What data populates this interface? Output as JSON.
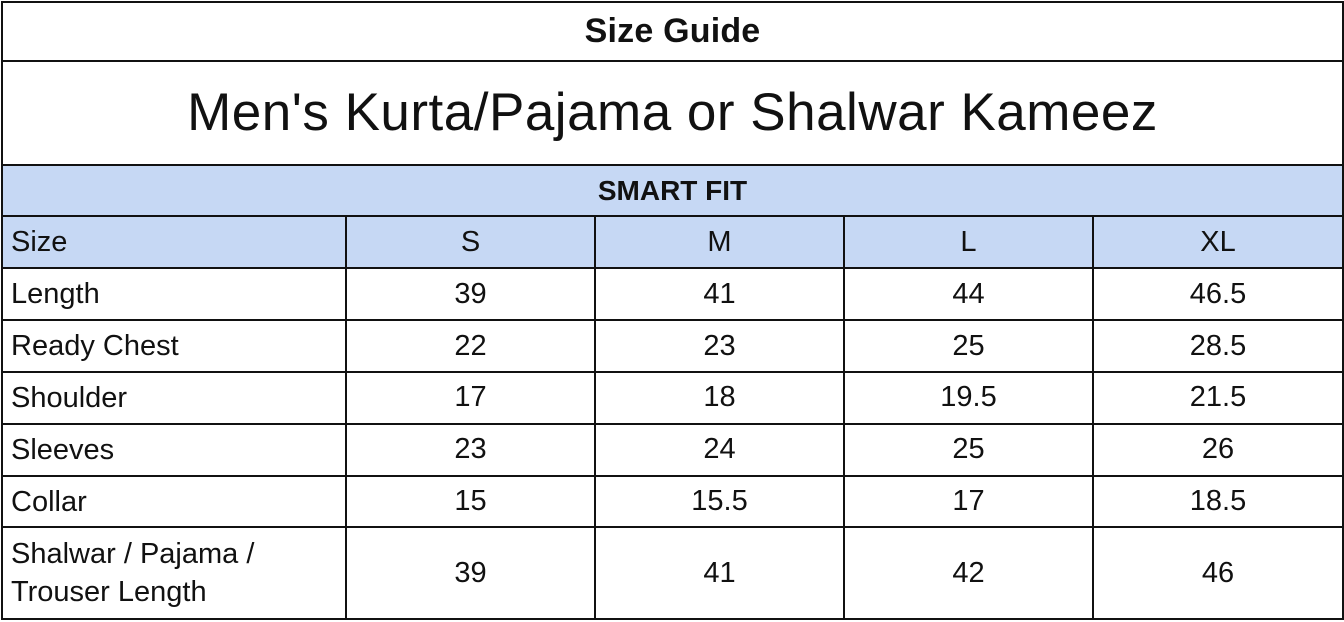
{
  "guide": {
    "title": "Size Guide",
    "subtitle": "Men's Kurta/Pajama or Shalwar Kameez",
    "fit": "SMART FIT",
    "columns": [
      "Size",
      "S",
      "M",
      "L",
      "XL"
    ],
    "rows": [
      {
        "label": "Length",
        "values": [
          "39",
          "41",
          "44",
          "46.5"
        ]
      },
      {
        "label": "Ready Chest",
        "values": [
          "22",
          "23",
          "25",
          "28.5"
        ]
      },
      {
        "label": "Shoulder",
        "values": [
          "17",
          "18",
          "19.5",
          "21.5"
        ]
      },
      {
        "label": "Sleeves",
        "values": [
          "23",
          "24",
          "25",
          "26"
        ]
      },
      {
        "label": "Collar",
        "values": [
          "15",
          "15.5",
          "17",
          "18.5"
        ]
      },
      {
        "label_line1": "Shalwar / Pajama /",
        "label_line2": "Trouser Length",
        "values": [
          "39",
          "41",
          "42",
          "46"
        ]
      }
    ]
  },
  "colors": {
    "header_bg": "#c6d8f4",
    "border": "#111111"
  }
}
